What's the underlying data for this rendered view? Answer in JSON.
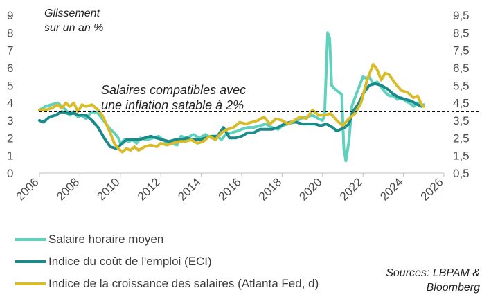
{
  "chart_data": {
    "type": "line",
    "title": "",
    "ylabel_left": "Glissement sur un an %",
    "ylabel_left_lines": [
      "Glissement",
      "sur un an %"
    ],
    "x_range": [
      2006,
      2026
    ],
    "x_ticks": [
      "2006",
      "2008",
      "2010",
      "2012",
      "2014",
      "2016",
      "2018",
      "2020",
      "2022",
      "2024",
      "2026"
    ],
    "y_left_range": [
      0,
      9
    ],
    "y_left_ticks": [
      "0",
      "1",
      "2",
      "3",
      "4",
      "5",
      "6",
      "7",
      "8",
      "9"
    ],
    "y_right_range": [
      0.5,
      9.5
    ],
    "y_right_ticks": [
      "0,5",
      "1,5",
      "2,5",
      "3,5",
      "4,5",
      "5,5",
      "6,5",
      "7,5",
      "8,5",
      "9,5"
    ],
    "annotation_lines": [
      "Salaires compatibles avec",
      "une inflation satable à 2%"
    ],
    "reference_line": {
      "y": 3.5,
      "axis": "left",
      "style": "dashed"
    },
    "grid": false,
    "legend_position": "bottom-left",
    "source_lines": [
      "Sources: LBPAM &",
      "Bloomberg"
    ],
    "series": [
      {
        "name": "Salaire horaire moyen",
        "color": "#5fd1bd",
        "axis": "left",
        "points": [
          [
            2006.0,
            3.6
          ],
          [
            2006.3,
            3.8
          ],
          [
            2006.6,
            3.9
          ],
          [
            2006.9,
            4.0
          ],
          [
            2007.1,
            3.8
          ],
          [
            2007.3,
            3.6
          ],
          [
            2007.5,
            3.3
          ],
          [
            2007.7,
            3.5
          ],
          [
            2007.9,
            3.2
          ],
          [
            2008.1,
            3.3
          ],
          [
            2008.3,
            3.1
          ],
          [
            2008.5,
            3.4
          ],
          [
            2008.7,
            3.5
          ],
          [
            2008.9,
            3.4
          ],
          [
            2009.1,
            3.1
          ],
          [
            2009.3,
            2.8
          ],
          [
            2009.5,
            2.5
          ],
          [
            2009.7,
            2.3
          ],
          [
            2009.9,
            2.0
          ],
          [
            2010.0,
            1.7
          ],
          [
            2010.2,
            1.9
          ],
          [
            2010.4,
            1.8
          ],
          [
            2010.6,
            1.9
          ],
          [
            2010.8,
            1.7
          ],
          [
            2011.0,
            2.0
          ],
          [
            2011.3,
            1.9
          ],
          [
            2011.6,
            2.0
          ],
          [
            2011.9,
            2.1
          ],
          [
            2012.2,
            1.8
          ],
          [
            2012.5,
            1.7
          ],
          [
            2012.8,
            1.6
          ],
          [
            2013.0,
            2.1
          ],
          [
            2013.3,
            2.0
          ],
          [
            2013.6,
            2.2
          ],
          [
            2013.9,
            2.0
          ],
          [
            2014.2,
            2.2
          ],
          [
            2014.5,
            2.0
          ],
          [
            2014.8,
            2.1
          ],
          [
            2015.0,
            1.9
          ],
          [
            2015.2,
            2.2
          ],
          [
            2015.5,
            2.3
          ],
          [
            2015.8,
            2.4
          ],
          [
            2016.0,
            2.5
          ],
          [
            2016.3,
            2.6
          ],
          [
            2016.6,
            2.6
          ],
          [
            2016.9,
            2.7
          ],
          [
            2017.2,
            2.8
          ],
          [
            2017.5,
            2.6
          ],
          [
            2017.8,
            2.5
          ],
          [
            2018.0,
            2.7
          ],
          [
            2018.3,
            2.8
          ],
          [
            2018.6,
            2.9
          ],
          [
            2018.9,
            3.1
          ],
          [
            2019.2,
            3.2
          ],
          [
            2019.5,
            3.3
          ],
          [
            2019.8,
            3.1
          ],
          [
            2020.0,
            3.0
          ],
          [
            2020.1,
            3.3
          ],
          [
            2020.25,
            8.0
          ],
          [
            2020.35,
            7.7
          ],
          [
            2020.45,
            5.0
          ],
          [
            2020.6,
            4.8
          ],
          [
            2020.8,
            4.6
          ],
          [
            2020.95,
            4.5
          ],
          [
            2021.05,
            1.4
          ],
          [
            2021.15,
            0.7
          ],
          [
            2021.3,
            1.8
          ],
          [
            2021.45,
            3.8
          ],
          [
            2021.6,
            4.3
          ],
          [
            2021.8,
            4.9
          ],
          [
            2022.0,
            5.5
          ],
          [
            2022.15,
            5.4
          ],
          [
            2022.3,
            5.5
          ],
          [
            2022.5,
            5.1
          ],
          [
            2022.7,
            5.2
          ],
          [
            2022.9,
            4.9
          ],
          [
            2023.1,
            4.6
          ],
          [
            2023.3,
            4.4
          ],
          [
            2023.5,
            4.4
          ],
          [
            2023.7,
            4.2
          ],
          [
            2023.9,
            4.3
          ],
          [
            2024.1,
            4.1
          ],
          [
            2024.3,
            4.0
          ],
          [
            2024.5,
            3.8
          ],
          [
            2024.7,
            4.0
          ],
          [
            2024.9,
            3.9
          ],
          [
            2025.0,
            3.9
          ]
        ]
      },
      {
        "name": "Indice du coût de l'emploi (ECI)",
        "color": "#1a8a8a",
        "axis": "left",
        "points": [
          [
            2006.0,
            3.0
          ],
          [
            2006.2,
            2.9
          ],
          [
            2006.5,
            3.2
          ],
          [
            2006.8,
            3.3
          ],
          [
            2007.1,
            3.5
          ],
          [
            2007.4,
            3.4
          ],
          [
            2007.7,
            3.4
          ],
          [
            2008.0,
            3.3
          ],
          [
            2008.3,
            3.3
          ],
          [
            2008.6,
            3.0
          ],
          [
            2008.9,
            2.6
          ],
          [
            2009.2,
            2.0
          ],
          [
            2009.5,
            1.5
          ],
          [
            2009.8,
            1.4
          ],
          [
            2010.0,
            1.6
          ],
          [
            2010.3,
            1.9
          ],
          [
            2010.6,
            1.9
          ],
          [
            2010.9,
            1.9
          ],
          [
            2011.2,
            2.0
          ],
          [
            2011.5,
            2.1
          ],
          [
            2011.8,
            2.0
          ],
          [
            2012.1,
            1.9
          ],
          [
            2012.4,
            1.8
          ],
          [
            2012.7,
            1.9
          ],
          [
            2013.0,
            1.9
          ],
          [
            2013.3,
            2.0
          ],
          [
            2013.6,
            1.9
          ],
          [
            2013.9,
            1.9
          ],
          [
            2014.2,
            2.0
          ],
          [
            2014.5,
            2.1
          ],
          [
            2014.8,
            2.1
          ],
          [
            2015.1,
            2.6
          ],
          [
            2015.4,
            2.0
          ],
          [
            2015.7,
            2.0
          ],
          [
            2016.0,
            2.1
          ],
          [
            2016.3,
            2.3
          ],
          [
            2016.6,
            2.3
          ],
          [
            2016.9,
            2.5
          ],
          [
            2017.2,
            2.5
          ],
          [
            2017.5,
            2.5
          ],
          [
            2017.8,
            2.6
          ],
          [
            2018.1,
            2.8
          ],
          [
            2018.4,
            2.9
          ],
          [
            2018.7,
            2.9
          ],
          [
            2019.0,
            2.8
          ],
          [
            2019.3,
            2.8
          ],
          [
            2019.6,
            2.8
          ],
          [
            2019.9,
            2.7
          ],
          [
            2020.2,
            2.8
          ],
          [
            2020.5,
            2.6
          ],
          [
            2020.7,
            2.4
          ],
          [
            2020.9,
            2.5
          ],
          [
            2021.1,
            2.6
          ],
          [
            2021.3,
            2.8
          ],
          [
            2021.5,
            3.5
          ],
          [
            2021.8,
            4.0
          ],
          [
            2022.0,
            4.5
          ],
          [
            2022.3,
            5.0
          ],
          [
            2022.6,
            5.1
          ],
          [
            2022.9,
            5.0
          ],
          [
            2023.2,
            4.8
          ],
          [
            2023.5,
            4.5
          ],
          [
            2023.8,
            4.3
          ],
          [
            2024.1,
            4.2
          ],
          [
            2024.4,
            4.1
          ],
          [
            2024.7,
            3.9
          ],
          [
            2024.9,
            3.8
          ]
        ]
      },
      {
        "name": "Indice de la croissance des salaires (Atlanta Fed, d)",
        "color": "#d9bc2b",
        "axis": "right",
        "points": [
          [
            2006.0,
            4.1
          ],
          [
            2006.3,
            4.1
          ],
          [
            2006.6,
            4.2
          ],
          [
            2006.9,
            4.4
          ],
          [
            2007.1,
            4.2
          ],
          [
            2007.3,
            4.5
          ],
          [
            2007.5,
            4.3
          ],
          [
            2007.7,
            4.5
          ],
          [
            2007.9,
            4.0
          ],
          [
            2008.1,
            4.4
          ],
          [
            2008.3,
            4.3
          ],
          [
            2008.6,
            4.4
          ],
          [
            2008.9,
            4.1
          ],
          [
            2009.1,
            3.8
          ],
          [
            2009.3,
            3.3
          ],
          [
            2009.5,
            2.8
          ],
          [
            2009.7,
            2.2
          ],
          [
            2009.9,
            1.9
          ],
          [
            2010.1,
            1.7
          ],
          [
            2010.3,
            1.9
          ],
          [
            2010.5,
            1.8
          ],
          [
            2010.7,
            2.0
          ],
          [
            2010.9,
            1.8
          ],
          [
            2011.2,
            2.0
          ],
          [
            2011.5,
            2.1
          ],
          [
            2011.8,
            2.0
          ],
          [
            2012.0,
            2.2
          ],
          [
            2012.3,
            2.1
          ],
          [
            2012.6,
            2.2
          ],
          [
            2012.9,
            2.3
          ],
          [
            2013.2,
            2.3
          ],
          [
            2013.5,
            2.4
          ],
          [
            2013.8,
            2.2
          ],
          [
            2014.1,
            2.3
          ],
          [
            2014.4,
            2.6
          ],
          [
            2014.7,
            2.4
          ],
          [
            2015.0,
            2.8
          ],
          [
            2015.3,
            3.0
          ],
          [
            2015.6,
            3.1
          ],
          [
            2015.9,
            3.4
          ],
          [
            2016.2,
            3.3
          ],
          [
            2016.5,
            3.4
          ],
          [
            2016.8,
            3.5
          ],
          [
            2017.1,
            3.7
          ],
          [
            2017.4,
            3.3
          ],
          [
            2017.7,
            3.6
          ],
          [
            2018.0,
            3.5
          ],
          [
            2018.3,
            3.3
          ],
          [
            2018.6,
            3.5
          ],
          [
            2018.9,
            3.7
          ],
          [
            2019.2,
            3.6
          ],
          [
            2019.5,
            4.1
          ],
          [
            2019.8,
            3.8
          ],
          [
            2020.1,
            3.8
          ],
          [
            2020.4,
            3.9
          ],
          [
            2020.7,
            3.5
          ],
          [
            2021.0,
            3.2
          ],
          [
            2021.3,
            3.6
          ],
          [
            2021.6,
            3.9
          ],
          [
            2021.9,
            4.5
          ],
          [
            2022.2,
            5.8
          ],
          [
            2022.5,
            6.7
          ],
          [
            2022.7,
            6.4
          ],
          [
            2022.9,
            5.8
          ],
          [
            2023.1,
            6.2
          ],
          [
            2023.3,
            6.1
          ],
          [
            2023.6,
            5.6
          ],
          [
            2023.9,
            5.2
          ],
          [
            2024.2,
            5.1
          ],
          [
            2024.5,
            4.8
          ],
          [
            2024.7,
            4.9
          ],
          [
            2024.9,
            4.4
          ],
          [
            2025.0,
            4.3
          ]
        ]
      }
    ]
  }
}
